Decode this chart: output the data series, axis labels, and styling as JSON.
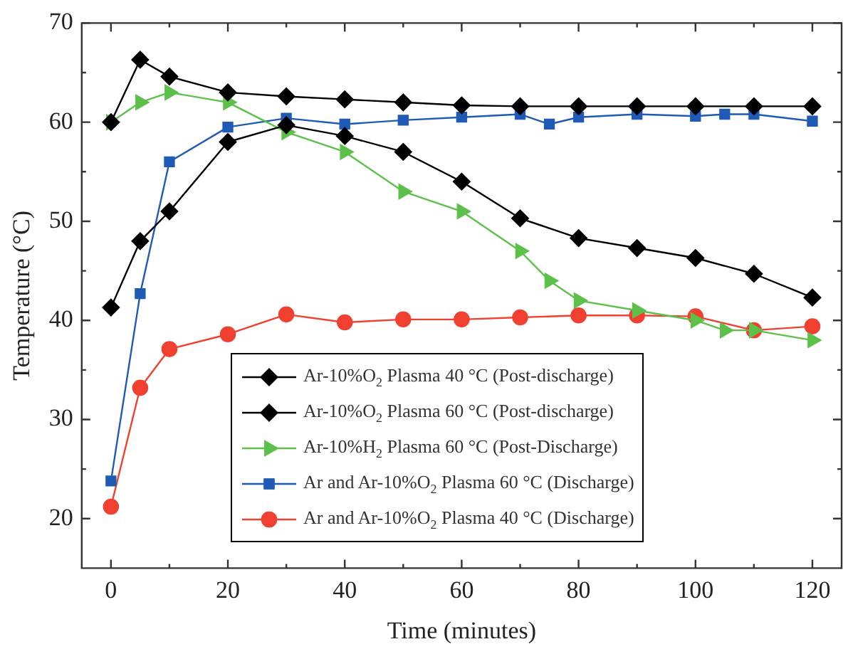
{
  "chart_data": {
    "type": "line",
    "xlabel": "Time (minutes)",
    "ylabel": "Temperature (°C)",
    "xlim": [
      -5,
      125
    ],
    "ylim": [
      15,
      70
    ],
    "xticks": [
      0,
      {
        "value": 10,
        "label": null
      },
      20,
      {
        "value": 30,
        "label": null
      },
      40,
      {
        "value": 50,
        "label": null
      },
      60,
      {
        "value": 70,
        "label": null
      },
      80,
      {
        "value": 90,
        "label": null
      },
      100,
      {
        "value": 110,
        "label": null
      },
      120
    ],
    "yticks": [
      20,
      {
        "value": 25,
        "label": null
      },
      30,
      {
        "value": 35,
        "label": null
      },
      40,
      {
        "value": 45,
        "label": null
      },
      50,
      {
        "value": 55,
        "label": null
      },
      60,
      {
        "value": 65,
        "label": null
      },
      70
    ],
    "grid": false,
    "legend": "bottom",
    "line_style": "solid",
    "series": [
      {
        "name": "Ar-10%O$_{2}$ Plasma 40 °C (Post-discharge)",
        "color": "#000000",
        "marker": "diamond",
        "x": [
          0,
          5,
          10,
          20,
          30,
          40,
          50,
          60,
          70,
          80,
          90,
          100,
          110,
          120
        ],
        "values": [
          41.3,
          48,
          51,
          58,
          59.7,
          58.6,
          57,
          54,
          50.3,
          48.3,
          47.3,
          46.3,
          44.7,
          42.3
        ]
      },
      {
        "name": "Ar-10%O$_{2}$ Plasma 60 °C (Post-discharge)",
        "color": "#000000",
        "marker": "diamond",
        "x": [
          0,
          5,
          10,
          20,
          30,
          40,
          50,
          60,
          70,
          80,
          90,
          100,
          110,
          120
        ],
        "values": [
          60,
          66.3,
          64.6,
          63,
          62.6,
          62.3,
          62,
          61.7,
          61.6,
          61.6,
          61.6,
          61.6,
          61.6,
          61.6
        ]
      },
      {
        "name": "Ar-10%H$_{2}$ Plasma 60 °C (Post-Discharge)",
        "color": "#5cc04a",
        "marker": "triangle",
        "x": [
          0,
          5,
          10,
          20,
          30,
          40,
          50,
          60,
          70,
          75,
          80,
          90,
          100,
          105,
          110,
          120
        ],
        "values": [
          60,
          62,
          63,
          62,
          59,
          57,
          53,
          51,
          47,
          44,
          42,
          41,
          40,
          39,
          39,
          38
        ]
      },
      {
        "name": "Ar and Ar-10%O$_{2}$ Plasma 60 °C (Discharge)",
        "color": "#1f5bb5",
        "marker": "square",
        "x": [
          0,
          5,
          10,
          20,
          30,
          40,
          50,
          60,
          70,
          75,
          80,
          90,
          100,
          105,
          110,
          120
        ],
        "values": [
          23.8,
          42.7,
          56,
          59.5,
          60.4,
          59.8,
          60.2,
          60.5,
          60.8,
          59.8,
          60.5,
          60.8,
          60.6,
          60.8,
          60.8,
          60.1
        ]
      },
      {
        "name": "Ar and Ar-10%O$_{2}$ Plasma 40 °C (Discharge)",
        "color": "#f04030",
        "marker": "circle",
        "x": [
          0,
          5,
          10,
          20,
          30,
          40,
          50,
          60,
          70,
          80,
          90,
          100,
          110,
          120
        ],
        "values": [
          21.2,
          33.2,
          37.1,
          38.6,
          40.6,
          39.8,
          40.1,
          40.1,
          40.3,
          40.5,
          40.5,
          40.4,
          39,
          39.4
        ]
      }
    ]
  }
}
